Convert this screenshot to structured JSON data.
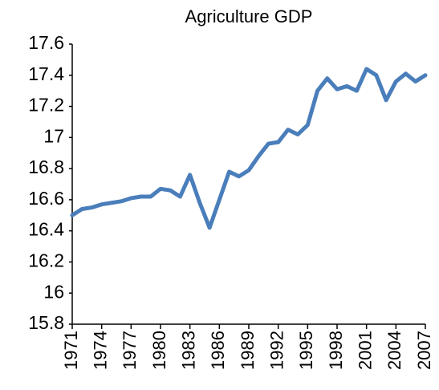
{
  "chart_data": {
    "type": "line",
    "title": "Agriculture GDP",
    "x": [
      1971,
      1972,
      1973,
      1974,
      1975,
      1976,
      1977,
      1978,
      1979,
      1980,
      1981,
      1982,
      1983,
      1984,
      1985,
      1986,
      1987,
      1988,
      1989,
      1990,
      1991,
      1992,
      1993,
      1994,
      1995,
      1996,
      1997,
      1998,
      1999,
      2000,
      2001,
      2002,
      2003,
      2004,
      2005,
      2006,
      2007
    ],
    "series": [
      {
        "color": "#4a7ebb",
        "values": [
          16.5,
          16.54,
          16.55,
          16.57,
          16.58,
          16.59,
          16.61,
          16.62,
          16.62,
          16.67,
          16.66,
          16.62,
          16.76,
          16.58,
          16.42,
          16.6,
          16.78,
          16.75,
          16.79,
          16.88,
          16.96,
          16.97,
          17.05,
          17.02,
          17.08,
          17.3,
          17.38,
          17.31,
          17.33,
          17.3,
          17.44,
          17.4,
          17.24,
          17.36,
          17.41,
          17.36,
          17.4
        ]
      }
    ],
    "xlim": [
      1971,
      2007
    ],
    "xticks": [
      1971,
      1974,
      1977,
      1980,
      1983,
      1986,
      1989,
      1992,
      1995,
      1998,
      2001,
      2004,
      2007
    ],
    "ylim": [
      15.8,
      17.6
    ],
    "yticks": [
      15.8,
      16,
      16.2,
      16.4,
      16.6,
      16.8,
      17,
      17.2,
      17.4,
      17.6
    ],
    "grid": false
  }
}
